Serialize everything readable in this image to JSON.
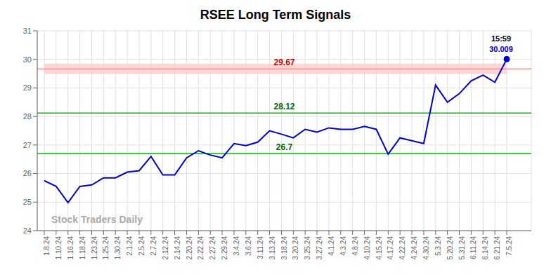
{
  "chart_data": {
    "type": "line",
    "title": "RSEE Long Term Signals",
    "color": "#0000cc",
    "grid": true,
    "ylim": [
      24,
      31
    ],
    "yticks": [
      24,
      25,
      26,
      27,
      28,
      29,
      30,
      31
    ],
    "categories": [
      "1.8.24",
      "1.10.24",
      "1.16.24",
      "1.18.24",
      "1.23.24",
      "1.25.24",
      "1.30.24",
      "2.1.24",
      "2.5.24",
      "2.7.24",
      "2.12.24",
      "2.14.24",
      "2.20.24",
      "2.22.24",
      "2.27.24",
      "2.29.24",
      "3.4.24",
      "3.6.24",
      "3.11.24",
      "3.13.24",
      "3.18.24",
      "3.20.24",
      "3.25.24",
      "3.27.24",
      "4.1.24",
      "4.3.24",
      "4.8.24",
      "4.10.24",
      "4.15.24",
      "4.17.24",
      "4.22.24",
      "4.24.24",
      "4.30.24",
      "5.3.24",
      "5.20.24",
      "5.31.24",
      "6.11.24",
      "6.14.24",
      "6.21.24",
      "7.5.24"
    ],
    "values": [
      25.75,
      25.55,
      24.98,
      25.55,
      25.6,
      25.85,
      25.85,
      26.05,
      26.1,
      26.6,
      25.95,
      25.95,
      26.55,
      26.8,
      26.65,
      26.55,
      27.05,
      26.98,
      27.1,
      27.5,
      27.38,
      27.25,
      27.55,
      27.45,
      27.6,
      27.55,
      27.55,
      27.65,
      27.55,
      26.68,
      27.25,
      27.15,
      27.05,
      29.1,
      28.5,
      28.8,
      29.25,
      29.45,
      29.2,
      30.009
    ],
    "hlines": [
      {
        "value": 29.67,
        "label": "29.67",
        "color": "#ff9999",
        "label_color": "#cc0000",
        "band": [
          29.49,
          29.85
        ],
        "band_color": "#ffcccc"
      },
      {
        "value": 28.12,
        "label": "28.12",
        "color": "#00bb00",
        "label_color": "#006600"
      },
      {
        "value": 26.7,
        "label": "26.7",
        "color": "#00bb00",
        "label_color": "#006600"
      }
    ],
    "annotations": [
      {
        "text": "15:59",
        "color": "#000000"
      },
      {
        "text": "30.009",
        "color": "#0000cc"
      }
    ],
    "watermark": {
      "text": "Stock Traders Daily",
      "color": "#aaaaaa"
    }
  }
}
